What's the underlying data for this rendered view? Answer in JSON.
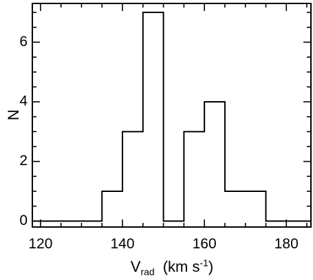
{
  "chart_data": {
    "type": "histogram",
    "title": "",
    "xlabel": {
      "symbol": "V",
      "subscript": "rad",
      "unit_prefix": "(km s",
      "unit_superscript": "-1",
      "unit_suffix": ")"
    },
    "ylabel": "N",
    "xlim": [
      118,
      186
    ],
    "ylim": [
      -0.2,
      7.3
    ],
    "x_ticks": [
      120,
      140,
      160,
      180
    ],
    "y_ticks": [
      0,
      2,
      4,
      6
    ],
    "x_minor_step": 5,
    "y_minor_step": 0.5,
    "bin_edges": [
      118,
      135,
      140,
      145,
      150,
      155,
      160,
      165,
      175,
      186
    ],
    "counts": [
      0,
      1,
      3,
      7,
      0,
      3,
      4,
      1,
      0
    ],
    "grid": false,
    "legend": "none"
  }
}
